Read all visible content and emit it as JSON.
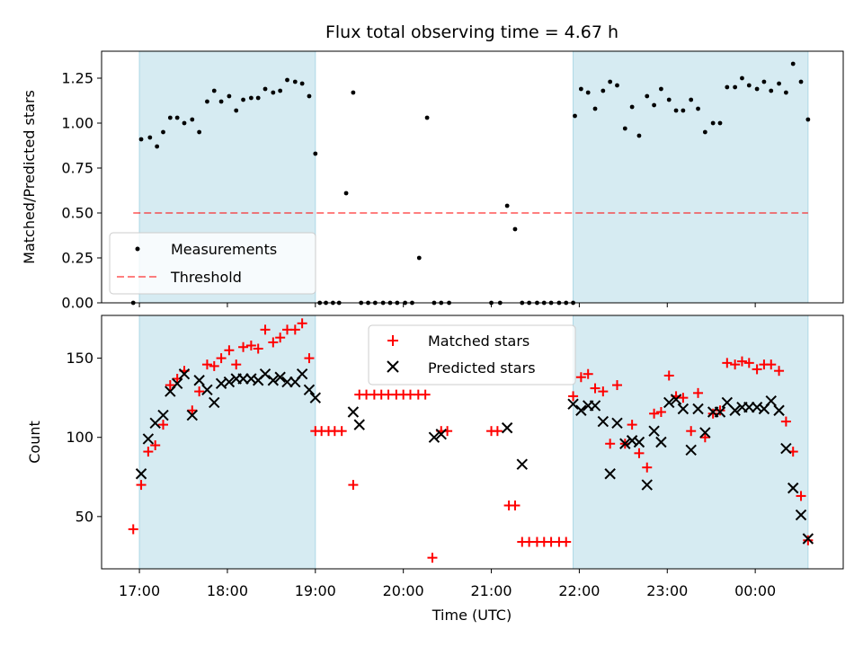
{
  "title": "Flux total observing time = 4.67 h",
  "colors": {
    "span": "#add8e6",
    "measurement": "#000000",
    "threshold": "#ff0000",
    "matched": "#ff0000",
    "predicted": "#000000"
  },
  "chart_data": [
    {
      "type": "scatter",
      "panel": "top",
      "ylabel": "Matched/Predicted stars",
      "xlim": [
        16.57,
        25.0
      ],
      "ylim": [
        0.0,
        1.4
      ],
      "yticks": [
        0.0,
        0.25,
        0.5,
        0.75,
        1.0,
        1.25
      ],
      "ytick_labels": [
        "0.00",
        "0.25",
        "0.50",
        "0.75",
        "1.00",
        "1.25"
      ],
      "spans": [
        [
          17.0,
          19.0
        ],
        [
          21.93,
          24.6
        ]
      ],
      "threshold": {
        "y": 0.5,
        "x": [
          16.93,
          24.6
        ],
        "label": "Threshold"
      },
      "legend": {
        "placement": "lower-left",
        "entries": [
          "Measurements",
          "Threshold"
        ]
      },
      "series": [
        {
          "name": "Measurements",
          "marker": "dot",
          "x": [
            16.93,
            17.02,
            17.12,
            17.2,
            17.27,
            17.35,
            17.43,
            17.51,
            17.6,
            17.68,
            17.77,
            17.85,
            17.93,
            18.02,
            18.1,
            18.18,
            18.27,
            18.35,
            18.43,
            18.52,
            18.6,
            18.68,
            18.77,
            18.85,
            18.93,
            19.0,
            19.05,
            19.12,
            19.2,
            19.27,
            19.35,
            19.43,
            19.52,
            19.6,
            19.68,
            19.77,
            19.85,
            19.93,
            20.02,
            20.1,
            20.18,
            20.27,
            20.35,
            20.43,
            20.52,
            21.0,
            21.1,
            21.18,
            21.27,
            21.35,
            21.43,
            21.52,
            21.6,
            21.68,
            21.77,
            21.85,
            21.93,
            21.95,
            22.02,
            22.1,
            22.18,
            22.27,
            22.35,
            22.43,
            22.52,
            22.6,
            22.68,
            22.77,
            22.85,
            22.93,
            23.02,
            23.1,
            23.18,
            23.27,
            23.35,
            23.43,
            23.52,
            23.6,
            23.68,
            23.77,
            23.85,
            23.93,
            24.02,
            24.1,
            24.18,
            24.27,
            24.35,
            24.43,
            24.52,
            24.6
          ],
          "y": [
            0.0,
            0.91,
            0.92,
            0.87,
            0.95,
            1.03,
            1.03,
            1.0,
            1.02,
            0.95,
            1.12,
            1.18,
            1.12,
            1.15,
            1.07,
            1.13,
            1.14,
            1.14,
            1.19,
            1.17,
            1.18,
            1.24,
            1.23,
            1.22,
            1.15,
            0.83,
            0.0,
            0.0,
            0.0,
            0.0,
            0.61,
            1.17,
            0.0,
            0.0,
            0.0,
            0.0,
            0.0,
            0.0,
            0.0,
            0.0,
            0.25,
            1.03,
            0.0,
            0.0,
            0.0,
            0.0,
            0.0,
            0.54,
            0.41,
            0.0,
            0.0,
            0.0,
            0.0,
            0.0,
            0.0,
            0.0,
            0.0,
            1.04,
            1.19,
            1.17,
            1.08,
            1.18,
            1.23,
            1.21,
            0.97,
            1.09,
            0.93,
            1.15,
            1.1,
            1.19,
            1.13,
            1.07,
            1.07,
            1.13,
            1.08,
            0.95,
            1.0,
            1.0,
            1.2,
            1.2,
            1.25,
            1.21,
            1.19,
            1.23,
            1.18,
            1.22,
            1.17,
            1.33,
            1.23,
            1.02
          ]
        }
      ]
    },
    {
      "type": "scatter",
      "panel": "bottom",
      "ylabel": "Count",
      "xlabel": "Time (UTC)",
      "xlim": [
        16.57,
        25.0
      ],
      "ylim": [
        17,
        177
      ],
      "yticks": [
        50,
        100,
        150
      ],
      "ytick_labels": [
        "50",
        "100",
        "150"
      ],
      "xticks": [
        17,
        18,
        19,
        20,
        21,
        22,
        23,
        24
      ],
      "xtick_labels": [
        "17:00",
        "18:00",
        "19:00",
        "20:00",
        "21:00",
        "22:00",
        "23:00",
        "00:00"
      ],
      "spans": [
        [
          17.0,
          19.0
        ],
        [
          21.93,
          24.6
        ]
      ],
      "legend": {
        "placement": "upper-center",
        "entries": [
          "Matched stars",
          "Predicted stars"
        ]
      },
      "series": [
        {
          "name": "Matched stars",
          "marker": "plus",
          "x": [
            16.93,
            17.02,
            17.1,
            17.18,
            17.27,
            17.35,
            17.43,
            17.51,
            17.6,
            17.68,
            17.77,
            17.85,
            17.93,
            18.02,
            18.1,
            18.18,
            18.27,
            18.35,
            18.43,
            18.52,
            18.6,
            18.68,
            18.77,
            18.85,
            18.93,
            19.0,
            19.07,
            19.15,
            19.22,
            19.3,
            19.43,
            19.5,
            19.58,
            19.67,
            19.75,
            19.83,
            19.92,
            20.0,
            20.08,
            20.17,
            20.25,
            20.33,
            20.43,
            20.5,
            21.0,
            21.07,
            21.2,
            21.27,
            21.35,
            21.43,
            21.52,
            21.6,
            21.68,
            21.77,
            21.85,
            21.93,
            22.02,
            22.1,
            22.18,
            22.27,
            22.35,
            22.43,
            22.52,
            22.6,
            22.68,
            22.77,
            22.85,
            22.93,
            23.02,
            23.1,
            23.18,
            23.27,
            23.35,
            23.43,
            23.52,
            23.6,
            23.68,
            23.77,
            23.85,
            23.93,
            24.02,
            24.1,
            24.18,
            24.27,
            24.35,
            24.43,
            24.52,
            24.6
          ],
          "y": [
            42,
            70,
            91,
            95,
            108,
            133,
            137,
            142,
            117,
            129,
            146,
            145,
            150,
            155,
            146,
            157,
            158,
            156,
            168,
            160,
            163,
            168,
            168,
            172,
            150,
            104,
            104,
            104,
            104,
            104,
            70,
            127,
            127,
            127,
            127,
            127,
            127,
            127,
            127,
            127,
            127,
            24,
            104,
            104,
            104,
            104,
            57,
            57,
            34,
            34,
            34,
            34,
            34,
            34,
            34,
            126,
            138,
            140,
            131,
            129,
            96,
            133,
            96,
            108,
            90,
            81,
            115,
            116,
            139,
            126,
            125,
            104,
            128,
            100,
            115,
            117,
            147,
            146,
            148,
            147,
            143,
            146,
            146,
            142,
            110,
            91,
            63,
            35
          ]
        },
        {
          "name": "Predicted stars",
          "marker": "x",
          "x": [
            17.02,
            17.1,
            17.18,
            17.27,
            17.35,
            17.43,
            17.51,
            17.6,
            17.68,
            17.77,
            17.85,
            17.93,
            18.02,
            18.1,
            18.18,
            18.27,
            18.35,
            18.43,
            18.52,
            18.6,
            18.68,
            18.77,
            18.85,
            18.93,
            19.0,
            19.43,
            19.5,
            20.35,
            20.43,
            21.18,
            21.35,
            21.93,
            22.02,
            22.1,
            22.18,
            22.27,
            22.35,
            22.43,
            22.52,
            22.6,
            22.68,
            22.77,
            22.85,
            22.93,
            23.02,
            23.1,
            23.18,
            23.27,
            23.35,
            23.43,
            23.52,
            23.6,
            23.68,
            23.77,
            23.85,
            23.93,
            24.02,
            24.1,
            24.18,
            24.27,
            24.35,
            24.43,
            24.52,
            24.6
          ],
          "y": [
            77,
            99,
            109,
            114,
            129,
            134,
            140,
            114,
            136,
            130,
            122,
            134,
            135,
            137,
            137,
            137,
            136,
            140,
            136,
            138,
            135,
            135,
            140,
            130,
            125,
            116,
            108,
            100,
            102,
            106,
            83,
            121,
            117,
            120,
            120,
            110,
            77,
            109,
            96,
            98,
            97,
            70,
            104,
            97,
            122,
            124,
            118,
            92,
            118,
            103,
            116,
            116,
            122,
            117,
            119,
            119,
            119,
            118,
            123,
            117,
            93,
            68,
            51,
            36
          ]
        }
      ]
    }
  ]
}
